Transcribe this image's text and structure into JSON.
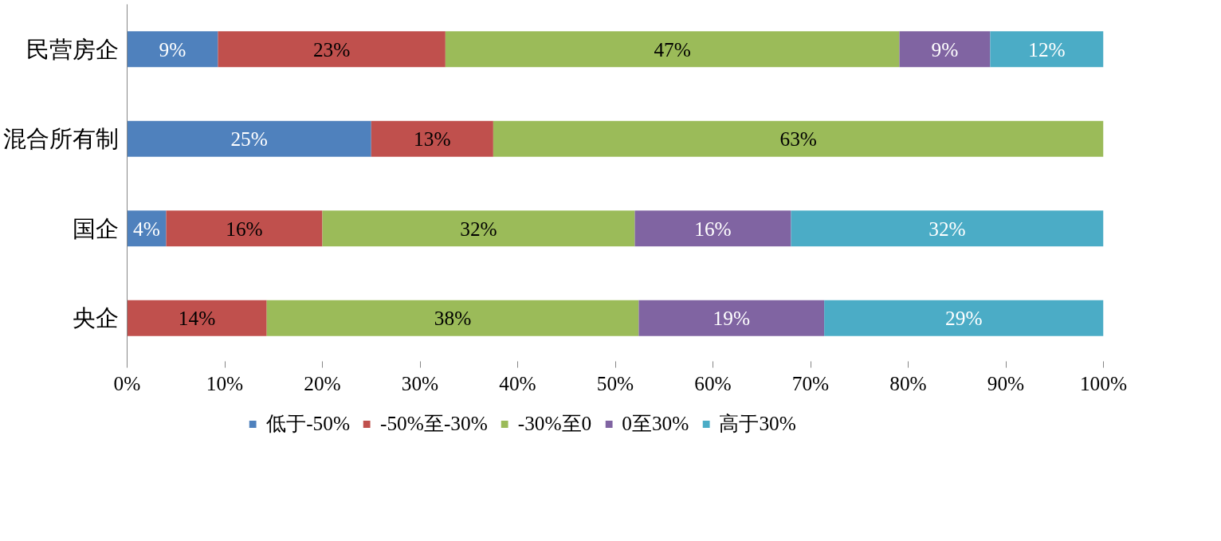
{
  "chart_data": {
    "type": "bar",
    "orientation": "horizontal",
    "stacked": true,
    "categories": [
      "民营房企",
      "混合所有制",
      "国企",
      "央企"
    ],
    "series": [
      {
        "name": "低于-50%",
        "color": "#4f81bd",
        "values": [
          9.3,
          25,
          4,
          null
        ],
        "value_labels": [
          "9%",
          "25%",
          "4%",
          null
        ]
      },
      {
        "name": "-50%至-30%",
        "color": "#c0504d",
        "values": [
          23.3,
          12.5,
          16,
          14.3
        ],
        "value_labels": [
          "23%",
          "13%",
          "16%",
          "14%"
        ]
      },
      {
        "name": "-30%至0",
        "color": "#9bbb59",
        "values": [
          46.5,
          62.5,
          32,
          38.1
        ],
        "value_labels": [
          "47%",
          "63%",
          "32%",
          "38%"
        ]
      },
      {
        "name": "0至30%",
        "color": "#8064a2",
        "values": [
          9.3,
          null,
          16,
          19.0
        ],
        "value_labels": [
          "9%",
          null,
          "16%",
          "19%"
        ]
      },
      {
        "name": "高于30%",
        "color": "#4bacc6",
        "values": [
          11.6,
          null,
          32,
          28.6
        ],
        "value_labels": [
          "12%",
          null,
          "32%",
          "29%"
        ]
      }
    ],
    "xlim": [
      0,
      100
    ],
    "xticks": [
      {
        "value": 0,
        "label": "0%"
      },
      {
        "value": 10,
        "label": "10%"
      },
      {
        "value": 20,
        "label": "20%"
      },
      {
        "value": 30,
        "label": "30%"
      },
      {
        "value": 40,
        "label": "40%"
      },
      {
        "value": 50,
        "label": "50%"
      },
      {
        "value": 60,
        "label": "60%"
      },
      {
        "value": 70,
        "label": "70%"
      },
      {
        "value": 80,
        "label": "80%"
      },
      {
        "value": 90,
        "label": "90%"
      },
      {
        "value": 100,
        "label": "100%"
      }
    ],
    "grid": false,
    "legend": "bottom"
  }
}
